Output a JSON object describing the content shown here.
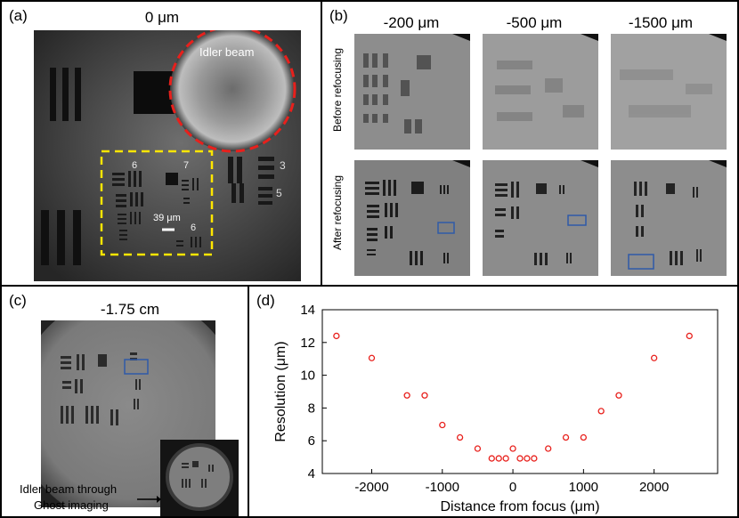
{
  "colors": {
    "marker": "#e8201c",
    "dashed_red": "#e8201c",
    "dashed_yellow": "#ffe600",
    "roi_box": "#2f5aa8"
  },
  "panel_a": {
    "label": "(a)",
    "title": "0 μm",
    "beam_label": "Idler beam",
    "scale_label": "39 μm",
    "group_numbers": [
      "6",
      "7",
      "3",
      "6",
      "5"
    ]
  },
  "panel_b": {
    "label": "(b)",
    "columns": [
      "-200 μm",
      "-500 μm",
      "-1500 μm"
    ],
    "row_before": "Before refocusing",
    "row_after": "After refocusing"
  },
  "panel_c": {
    "label": "(c)",
    "title": "-1.75 cm",
    "caption_line1": "Idler beam through",
    "caption_line2": "Ghost imaging"
  },
  "panel_d": {
    "label": "(d)"
  },
  "chart_data": {
    "type": "scatter",
    "title": "",
    "xlabel": "Distance from focus (μm)",
    "ylabel": "Resolution (μm)",
    "xlim": [
      -2700,
      2900
    ],
    "ylim": [
      4,
      14
    ],
    "xticks": [
      -2000,
      -1000,
      0,
      1000,
      2000
    ],
    "yticks": [
      4,
      6,
      8,
      10,
      12,
      14
    ],
    "grid": false,
    "x": [
      -2500,
      -2000,
      -1500,
      -1250,
      -1000,
      -750,
      -500,
      -300,
      -200,
      -100,
      0,
      100,
      200,
      300,
      500,
      750,
      1000,
      1250,
      1500,
      2000,
      2500
    ],
    "y": [
      12.4,
      11.05,
      8.77,
      8.77,
      6.96,
      6.2,
      5.52,
      4.92,
      4.92,
      4.92,
      5.52,
      4.92,
      4.92,
      4.92,
      5.52,
      6.2,
      6.2,
      7.81,
      8.77,
      11.05,
      12.4
    ]
  }
}
